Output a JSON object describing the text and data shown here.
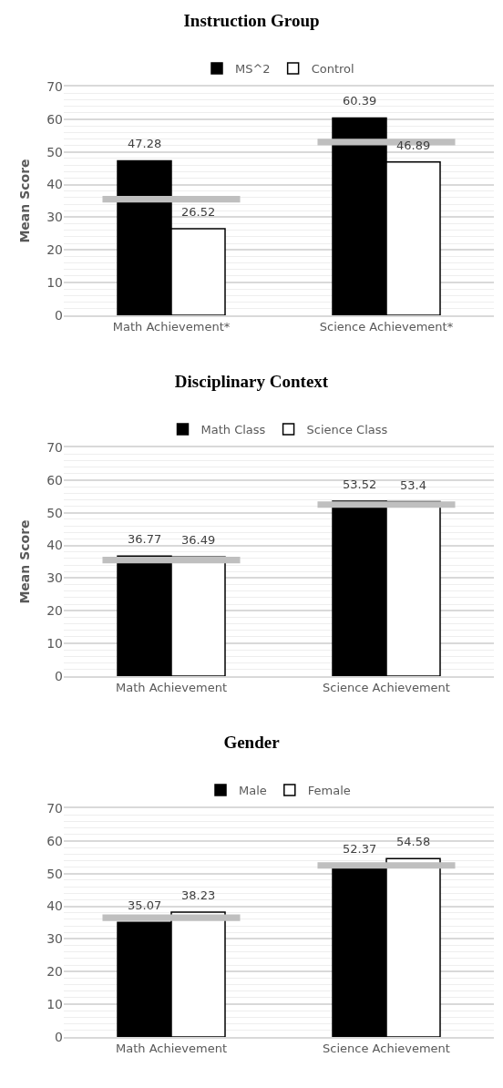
{
  "chart_data": [
    {
      "type": "bar",
      "title": "Instruction Group",
      "ylabel": "Mean Score",
      "categories": [
        "Math Achievement*",
        "Science Achievement*"
      ],
      "series": [
        {
          "name": "MS^2",
          "color": "#000000",
          "values": [
            47.28,
            60.39
          ],
          "value_labels": [
            "47.28",
            "60.39"
          ]
        },
        {
          "name": "Control",
          "color": "#ffffff",
          "values": [
            26.52,
            46.89
          ],
          "value_labels": [
            "26.52",
            "46.89"
          ]
        },
        {
          "color": "#bfbfbf",
          "values": [
            2,
            2
          ],
          "base": [
            34.5,
            52
          ]
        }
      ],
      "ylim": [
        0,
        70
      ],
      "yticks": [
        0,
        10,
        20,
        30,
        40,
        50,
        60,
        70
      ],
      "grid": "y",
      "legend": "top"
    },
    {
      "type": "bar",
      "title": "Disciplinary Context",
      "ylabel": "Mean Score",
      "categories": [
        "Math Achievement",
        "Science Achievement"
      ],
      "series": [
        {
          "name": "Math Class",
          "color": "#000000",
          "values": [
            36.77,
            53.52
          ],
          "value_labels": [
            "36.77",
            "53.52"
          ]
        },
        {
          "name": "Science Class",
          "color": "#ffffff",
          "values": [
            36.49,
            53.4
          ],
          "value_labels": [
            "36.49",
            "53.4"
          ]
        },
        {
          "color": "#bfbfbf",
          "values": [
            2,
            2
          ],
          "base": [
            34.5,
            51.5
          ]
        }
      ],
      "ylim": [
        0,
        70
      ],
      "yticks": [
        0,
        10,
        20,
        30,
        40,
        50,
        60,
        70
      ],
      "grid": "y",
      "legend": "top"
    },
    {
      "type": "bar",
      "title": "Gender",
      "categories": [
        "Math Achievement",
        "Science Achievement"
      ],
      "series": [
        {
          "name": "Male",
          "color": "#000000",
          "values": [
            35.07,
            52.37
          ],
          "value_labels": [
            "35.07",
            "52.37"
          ]
        },
        {
          "name": "Female",
          "color": "#ffffff",
          "values": [
            38.23,
            54.58
          ],
          "value_labels": [
            "38.23",
            "54.58"
          ]
        },
        {
          "color": "#bfbfbf",
          "values": [
            2,
            2
          ],
          "base": [
            35.5,
            51.5
          ]
        }
      ],
      "ylim": [
        0,
        70
      ],
      "yticks": [
        0,
        10,
        20,
        30,
        40,
        50,
        60,
        70
      ],
      "grid": "y",
      "legend": "top"
    }
  ]
}
